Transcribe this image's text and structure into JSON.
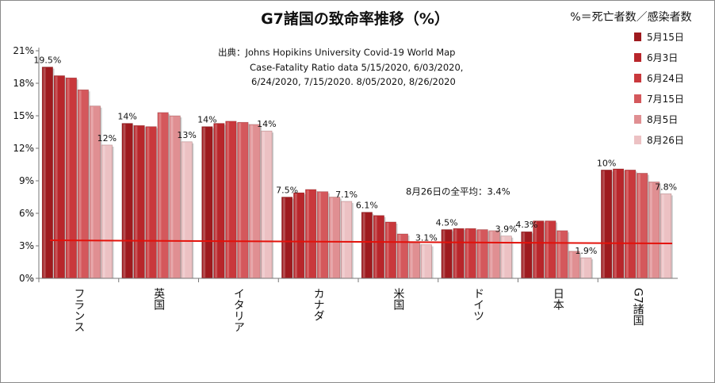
{
  "chart_data": {
    "type": "bar",
    "title": "G7諸国の致命率推移（%）",
    "formula_note": "%＝死亡者数／感染者数",
    "source_lines": [
      "出典：Johns Hopikins University   Covid-19 World Map",
      "Case-Fatality Ratio data   5/15/2020, 6/03/2020,",
      "6/24/2020, 7/15/2020. 8/05/2020, 8/26/2020"
    ],
    "categories": [
      "フランス",
      "英国",
      "イタリア",
      "カナダ",
      "米国",
      "ドイツ",
      "日本",
      "G7諸国"
    ],
    "series": [
      {
        "name": "5月15日",
        "color": "#9e1a1e",
        "values": [
          19.5,
          14.3,
          14.0,
          7.5,
          6.1,
          4.5,
          4.3,
          10.0
        ]
      },
      {
        "name": "6月3日",
        "color": "#b8262b",
        "values": [
          18.7,
          14.1,
          14.3,
          7.9,
          5.8,
          4.6,
          5.3,
          10.1
        ]
      },
      {
        "name": "6月24日",
        "color": "#c9383c",
        "values": [
          18.5,
          14.0,
          14.5,
          8.2,
          5.2,
          4.6,
          5.3,
          10.0
        ]
      },
      {
        "name": "7月15日",
        "color": "#d4585c",
        "values": [
          17.4,
          15.3,
          14.4,
          8.0,
          4.1,
          4.5,
          4.4,
          9.7
        ]
      },
      {
        "name": "8月5日",
        "color": "#e08f92",
        "values": [
          15.9,
          15.0,
          14.2,
          7.5,
          3.3,
          4.4,
          2.5,
          8.9
        ]
      },
      {
        "name": "8月26日",
        "color": "#ecc1c3",
        "values": [
          12.3,
          12.6,
          13.6,
          7.1,
          3.1,
          3.9,
          1.9,
          7.8
        ]
      }
    ],
    "data_labels": [
      {
        "category": 0,
        "series": 0,
        "text": "19.5%"
      },
      {
        "category": 0,
        "series": 5,
        "text": "12%"
      },
      {
        "category": 1,
        "series": 0,
        "text": "14%"
      },
      {
        "category": 1,
        "series": 5,
        "text": "13%"
      },
      {
        "category": 2,
        "series": 0,
        "text": "14%"
      },
      {
        "category": 2,
        "series": 5,
        "text": "14%"
      },
      {
        "category": 3,
        "series": 0,
        "text": "7.5%"
      },
      {
        "category": 3,
        "series": 5,
        "text": "7.1%"
      },
      {
        "category": 4,
        "series": 0,
        "text": "6.1%"
      },
      {
        "category": 4,
        "series": 5,
        "text": "3.1%"
      },
      {
        "category": 5,
        "series": 0,
        "text": "4.5%"
      },
      {
        "category": 5,
        "series": 5,
        "text": "3.9%"
      },
      {
        "category": 6,
        "series": 0,
        "text": "4.3%"
      },
      {
        "category": 6,
        "series": 5,
        "text": "1.9%"
      },
      {
        "category": 7,
        "series": 0,
        "text": "10%"
      },
      {
        "category": 7,
        "series": 5,
        "text": "7.8%"
      }
    ],
    "average_line": {
      "value": 3.4,
      "label": "8月26日の全平均：3.4%",
      "color": "#e3120b"
    },
    "y_ticks": [
      "0%",
      "3%",
      "6%",
      "9%",
      "12%",
      "15%",
      "18%",
      "21%"
    ],
    "ylim": [
      0,
      21
    ],
    "xlabel": "",
    "ylabel": "",
    "grid": false,
    "legend_position": "right"
  }
}
